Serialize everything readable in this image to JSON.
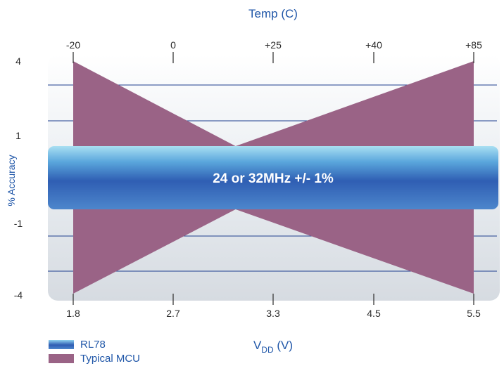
{
  "chart_data": {
    "type": "area",
    "title": "",
    "top_axis": {
      "label": "Temp (C)",
      "ticks": [
        "-20",
        "0",
        "+25",
        "+40",
        "+85"
      ]
    },
    "bottom_axis": {
      "label_main": "V",
      "label_sub": "DD",
      "label_unit": " (V)",
      "ticks": [
        "1.8",
        "2.7",
        "3.3",
        "4.5",
        "5.5"
      ]
    },
    "y_axis": {
      "label": "% Accuracy",
      "ticks": [
        "4",
        "1",
        "-1",
        "-4"
      ],
      "ylim": [
        -4,
        4
      ]
    },
    "band_label": "24 or 32MHz +/- 1%",
    "series": [
      {
        "name": "RL78",
        "color": "#3a6fbf",
        "x": [
          "1.8",
          "2.7",
          "3.3",
          "4.5",
          "5.5"
        ],
        "upper": [
          1,
          1,
          1,
          1,
          1
        ],
        "lower": [
          -1,
          -1,
          -1,
          -1,
          -1
        ]
      },
      {
        "name": "Typical MCU",
        "color": "#9a6386",
        "x": [
          "1.8",
          "3.3",
          "5.5"
        ],
        "upper": [
          4,
          1,
          4
        ],
        "lower": [
          -4,
          -1,
          -4
        ]
      }
    ],
    "legend_position": "bottom-left",
    "grid": true
  }
}
